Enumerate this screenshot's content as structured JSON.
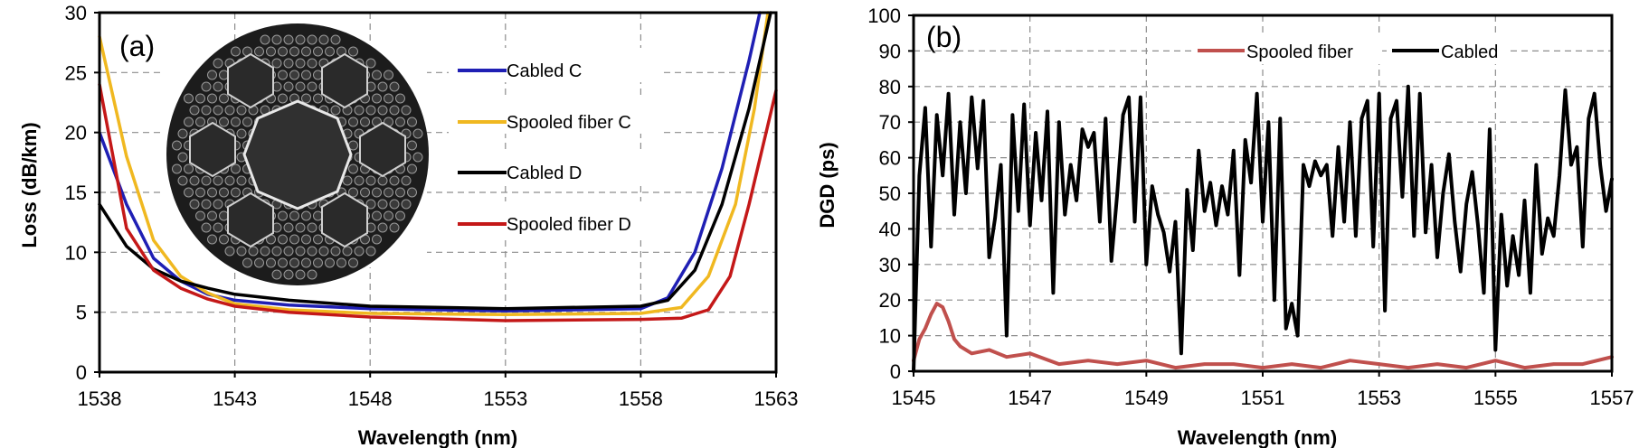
{
  "chart_data": [
    {
      "type": "line",
      "panel_label": "(a)",
      "xlabel": "Wavelength (nm)",
      "ylabel": "Loss (dB/km)",
      "xlim": [
        1538,
        1563
      ],
      "ylim": [
        0,
        30
      ],
      "xticks": [
        1538,
        1543,
        1548,
        1553,
        1558,
        1563
      ],
      "yticks": [
        0,
        5,
        10,
        15,
        20,
        25,
        30
      ],
      "grid": "dashed",
      "legend_position": "top-right",
      "inset": "fiber cross-section micrograph",
      "series": [
        {
          "name": "Cabled C",
          "color": "#1f1fb4",
          "x": [
            1538,
            1539,
            1540,
            1541,
            1542,
            1543,
            1545,
            1548,
            1553,
            1558,
            1559,
            1560,
            1561,
            1562,
            1562.4
          ],
          "y": [
            20,
            14,
            9.5,
            7.6,
            6.5,
            6.0,
            5.6,
            5.3,
            5.1,
            5.3,
            6.2,
            10,
            17,
            26,
            30
          ]
        },
        {
          "name": "Spooled fiber C",
          "color": "#f0b820",
          "x": [
            1538,
            1539,
            1540,
            1541,
            1542,
            1543,
            1545,
            1548,
            1553,
            1558,
            1559.5,
            1560.5,
            1561.5,
            1562.2,
            1562.7
          ],
          "y": [
            28,
            18,
            11,
            8,
            6.6,
            5.7,
            5.2,
            4.9,
            4.8,
            4.9,
            5.4,
            8,
            14,
            22,
            30
          ]
        },
        {
          "name": "Cabled D",
          "color": "#000000",
          "x": [
            1538,
            1539,
            1540,
            1541,
            1542,
            1543,
            1545,
            1548,
            1553,
            1558,
            1559,
            1560,
            1561,
            1562,
            1562.8
          ],
          "y": [
            14,
            10.5,
            8.6,
            7.6,
            7.0,
            6.5,
            6.0,
            5.5,
            5.3,
            5.5,
            6.0,
            8.5,
            14,
            22,
            30
          ]
        },
        {
          "name": "Spooled fiber D",
          "color": "#c41818",
          "x": [
            1538,
            1539,
            1540,
            1541,
            1542,
            1543,
            1545,
            1548,
            1553,
            1558,
            1559.5,
            1560.5,
            1561.3,
            1562,
            1563
          ],
          "y": [
            24,
            12,
            8.5,
            7,
            6.1,
            5.5,
            5.0,
            4.6,
            4.3,
            4.4,
            4.5,
            5.2,
            8,
            14,
            23.5
          ]
        }
      ]
    },
    {
      "type": "line",
      "panel_label": "(b)",
      "xlabel": "Wavelength (nm)",
      "ylabel": "DGD (ps)",
      "xlim": [
        1545,
        1557
      ],
      "ylim": [
        0,
        100
      ],
      "xticks": [
        1545,
        1547,
        1549,
        1551,
        1553,
        1555,
        1557
      ],
      "yticks": [
        0,
        10,
        20,
        30,
        40,
        50,
        60,
        70,
        80,
        90,
        100
      ],
      "grid": "dashed",
      "legend_position": "top",
      "series": [
        {
          "name": "Spooled fiber",
          "color": "#c0504d",
          "x": [
            1545,
            1545.1,
            1545.2,
            1545.3,
            1545.4,
            1545.5,
            1545.6,
            1545.7,
            1545.8,
            1546,
            1546.3,
            1546.6,
            1547,
            1547.5,
            1548,
            1548.5,
            1549,
            1549.5,
            1550,
            1550.5,
            1551,
            1551.5,
            1552,
            1552.5,
            1553,
            1553.5,
            1554,
            1554.5,
            1555,
            1555.5,
            1556,
            1556.5,
            1557
          ],
          "y": [
            3,
            9,
            12,
            16,
            19,
            18,
            14,
            9,
            7,
            5,
            6,
            4,
            5,
            2,
            3,
            2,
            3,
            1,
            2,
            2,
            1,
            2,
            1,
            3,
            2,
            1,
            2,
            1,
            3,
            1,
            2,
            2,
            4
          ]
        },
        {
          "name": "Cabled",
          "color": "#000000",
          "x": [
            1545,
            1545.1,
            1545.2,
            1545.3,
            1545.4,
            1545.5,
            1545.6,
            1545.7,
            1545.8,
            1545.9,
            1546,
            1546.1,
            1546.2,
            1546.3,
            1546.4,
            1546.5,
            1546.6,
            1546.7,
            1546.8,
            1546.9,
            1547,
            1547.1,
            1547.2,
            1547.3,
            1547.4,
            1547.5,
            1547.6,
            1547.7,
            1547.8,
            1547.9,
            1548,
            1548.1,
            1548.2,
            1548.3,
            1548.4,
            1548.5,
            1548.6,
            1548.7,
            1548.8,
            1548.9,
            1549,
            1549.1,
            1549.2,
            1549.3,
            1549.4,
            1549.5,
            1549.6,
            1549.7,
            1549.8,
            1549.9,
            1550,
            1550.1,
            1550.2,
            1550.3,
            1550.4,
            1550.5,
            1550.6,
            1550.7,
            1550.8,
            1550.9,
            1551,
            1551.1,
            1551.2,
            1551.3,
            1551.4,
            1551.5,
            1551.6,
            1551.7,
            1551.8,
            1551.9,
            1552,
            1552.1,
            1552.2,
            1552.3,
            1552.4,
            1552.5,
            1552.6,
            1552.7,
            1552.8,
            1552.9,
            1553,
            1553.1,
            1553.2,
            1553.3,
            1553.4,
            1553.5,
            1553.6,
            1553.7,
            1553.8,
            1553.9,
            1554,
            1554.1,
            1554.2,
            1554.3,
            1554.4,
            1554.5,
            1554.6,
            1554.7,
            1554.8,
            1554.9,
            1555,
            1555.1,
            1555.2,
            1555.3,
            1555.4,
            1555.5,
            1555.6,
            1555.7,
            1555.8,
            1555.9,
            1556,
            1556.1,
            1556.2,
            1556.3,
            1556.4,
            1556.5,
            1556.6,
            1556.7,
            1556.8,
            1556.9,
            1557
          ],
          "y": [
            0,
            55,
            74,
            35,
            72,
            55,
            78,
            44,
            70,
            50,
            77,
            57,
            76,
            32,
            43,
            58,
            10,
            72,
            45,
            75,
            41,
            67,
            48,
            73,
            22,
            70,
            44,
            58,
            48,
            68,
            63,
            67,
            42,
            71,
            31,
            50,
            72,
            77,
            42,
            77,
            30,
            52,
            44,
            39,
            28,
            42,
            5,
            51,
            34,
            62,
            45,
            53,
            41,
            52,
            44,
            62,
            27,
            65,
            53,
            78,
            42,
            70,
            20,
            71,
            12,
            19,
            10,
            58,
            52,
            59,
            55,
            58,
            38,
            63,
            42,
            70,
            38,
            71,
            76,
            35,
            78,
            17,
            71,
            76,
            49,
            80,
            38,
            78,
            39,
            58,
            32,
            50,
            61,
            42,
            28,
            47,
            56,
            41,
            22,
            68,
            6,
            44,
            24,
            38,
            27,
            48,
            22,
            58,
            33,
            43,
            38,
            55,
            79,
            58,
            63,
            35,
            71,
            78,
            58,
            45,
            54
          ]
        }
      ]
    }
  ]
}
